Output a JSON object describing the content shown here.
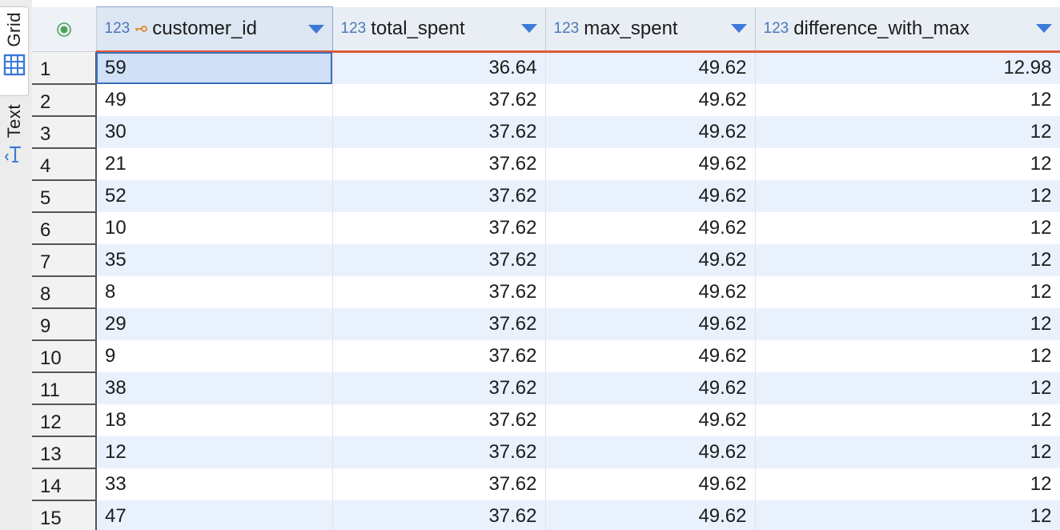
{
  "side_tabs": {
    "grid_label": "Grid",
    "text_label": "Text"
  },
  "columns": [
    {
      "type": "123",
      "name": "customer_id",
      "key": true
    },
    {
      "type": "123",
      "name": "total_spent",
      "key": false
    },
    {
      "type": "123",
      "name": "max_spent",
      "key": false
    },
    {
      "type": "123",
      "name": "difference_with_max",
      "key": false
    }
  ],
  "rows": [
    {
      "n": "1",
      "customer_id": "59",
      "total_spent": "36.64",
      "max_spent": "49.62",
      "difference_with_max": "12.98"
    },
    {
      "n": "2",
      "customer_id": "49",
      "total_spent": "37.62",
      "max_spent": "49.62",
      "difference_with_max": "12"
    },
    {
      "n": "3",
      "customer_id": "30",
      "total_spent": "37.62",
      "max_spent": "49.62",
      "difference_with_max": "12"
    },
    {
      "n": "4",
      "customer_id": "21",
      "total_spent": "37.62",
      "max_spent": "49.62",
      "difference_with_max": "12"
    },
    {
      "n": "5",
      "customer_id": "52",
      "total_spent": "37.62",
      "max_spent": "49.62",
      "difference_with_max": "12"
    },
    {
      "n": "6",
      "customer_id": "10",
      "total_spent": "37.62",
      "max_spent": "49.62",
      "difference_with_max": "12"
    },
    {
      "n": "7",
      "customer_id": "35",
      "total_spent": "37.62",
      "max_spent": "49.62",
      "difference_with_max": "12"
    },
    {
      "n": "8",
      "customer_id": "8",
      "total_spent": "37.62",
      "max_spent": "49.62",
      "difference_with_max": "12"
    },
    {
      "n": "9",
      "customer_id": "29",
      "total_spent": "37.62",
      "max_spent": "49.62",
      "difference_with_max": "12"
    },
    {
      "n": "10",
      "customer_id": "9",
      "total_spent": "37.62",
      "max_spent": "49.62",
      "difference_with_max": "12"
    },
    {
      "n": "11",
      "customer_id": "38",
      "total_spent": "37.62",
      "max_spent": "49.62",
      "difference_with_max": "12"
    },
    {
      "n": "12",
      "customer_id": "18",
      "total_spent": "37.62",
      "max_spent": "49.62",
      "difference_with_max": "12"
    },
    {
      "n": "13",
      "customer_id": "12",
      "total_spent": "37.62",
      "max_spent": "49.62",
      "difference_with_max": "12"
    },
    {
      "n": "14",
      "customer_id": "33",
      "total_spent": "37.62",
      "max_spent": "49.62",
      "difference_with_max": "12"
    },
    {
      "n": "15",
      "customer_id": "47",
      "total_spent": "37.62",
      "max_spent": "49.62",
      "difference_with_max": "12"
    }
  ],
  "colors": {
    "accent": "#3b7ad8",
    "header_underline": "#e05a3a",
    "row_stripe": "#e8f1fc",
    "selected_cell": "#cfe0f7"
  }
}
